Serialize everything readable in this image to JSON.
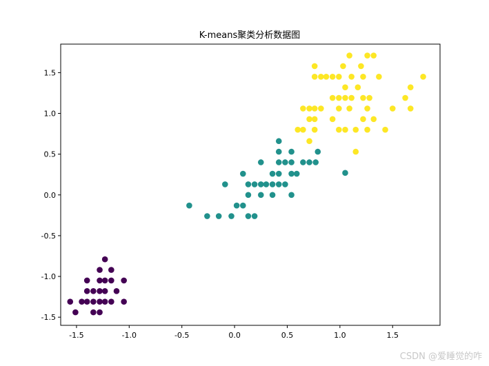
{
  "chart_data": {
    "type": "scatter",
    "title": "K-means聚类分析数据图",
    "xlabel": "",
    "ylabel": "",
    "xlim": [
      -1.65,
      1.95
    ],
    "ylim": [
      -1.6,
      1.85
    ],
    "x_ticks": [
      -1.5,
      -1.0,
      -0.5,
      0.0,
      0.5,
      1.0,
      1.5
    ],
    "y_ticks": [
      -1.5,
      -1.0,
      -0.5,
      0.0,
      0.5,
      1.0,
      1.5
    ],
    "x_tick_labels": [
      "-1.5",
      "-1.0",
      "-0.5",
      "0.0",
      "0.5",
      "1.0",
      "1.5"
    ],
    "y_tick_labels": [
      "-1.5",
      "-1.0",
      "-0.5",
      "0.0",
      "0.5",
      "1.0",
      "1.5"
    ],
    "grid": false,
    "series": [
      {
        "color": "#440154",
        "points": [
          [
            -1.23,
            -0.79
          ],
          [
            -1.28,
            -0.92
          ],
          [
            -1.17,
            -0.92
          ],
          [
            -1.4,
            -1.05
          ],
          [
            -1.28,
            -1.05
          ],
          [
            -1.23,
            -1.05
          ],
          [
            -1.17,
            -1.05
          ],
          [
            -1.05,
            -1.05
          ],
          [
            -1.4,
            -1.18
          ],
          [
            -1.34,
            -1.18
          ],
          [
            -1.28,
            -1.18
          ],
          [
            -1.23,
            -1.18
          ],
          [
            -1.12,
            -1.18
          ],
          [
            -1.4,
            -1.31
          ],
          [
            -1.34,
            -1.31
          ],
          [
            -1.28,
            -1.31
          ],
          [
            -1.23,
            -1.31
          ],
          [
            -1.17,
            -1.31
          ],
          [
            -1.56,
            -1.31
          ],
          [
            -1.45,
            -1.31
          ],
          [
            -1.05,
            -1.31
          ],
          [
            -1.51,
            -1.44
          ],
          [
            -1.34,
            -1.44
          ],
          [
            -1.28,
            -1.44
          ]
        ]
      },
      {
        "color": "#21918c",
        "points": [
          [
            0.42,
            0.66
          ],
          [
            0.42,
            0.53
          ],
          [
            0.54,
            0.53
          ],
          [
            0.79,
            0.53
          ],
          [
            0.25,
            0.4
          ],
          [
            0.42,
            0.4
          ],
          [
            0.48,
            0.4
          ],
          [
            0.54,
            0.4
          ],
          [
            0.65,
            0.4
          ],
          [
            0.71,
            0.4
          ],
          [
            0.77,
            0.4
          ],
          [
            0.08,
            0.26
          ],
          [
            0.36,
            0.26
          ],
          [
            0.42,
            0.26
          ],
          [
            0.54,
            0.26
          ],
          [
            0.59,
            0.26
          ],
          [
            1.05,
            0.27
          ],
          [
            -0.09,
            0.13
          ],
          [
            0.13,
            0.13
          ],
          [
            0.19,
            0.13
          ],
          [
            0.25,
            0.13
          ],
          [
            0.3,
            0.13
          ],
          [
            0.36,
            0.13
          ],
          [
            0.42,
            0.13
          ],
          [
            0.48,
            0.13
          ],
          [
            0.13,
            0.0
          ],
          [
            0.25,
            0.0
          ],
          [
            0.36,
            0.0
          ],
          [
            0.54,
            0.0
          ],
          [
            0.02,
            -0.13
          ],
          [
            0.08,
            -0.13
          ],
          [
            -0.43,
            -0.13
          ],
          [
            -0.26,
            -0.26
          ],
          [
            -0.15,
            -0.26
          ],
          [
            -0.03,
            -0.26
          ],
          [
            0.13,
            -0.26
          ],
          [
            0.19,
            -0.26
          ]
        ]
      },
      {
        "color": "#fde725",
        "points": [
          [
            1.09,
            1.71
          ],
          [
            1.26,
            1.71
          ],
          [
            1.32,
            1.71
          ],
          [
            0.76,
            1.58
          ],
          [
            1.03,
            1.58
          ],
          [
            1.2,
            1.58
          ],
          [
            0.76,
            1.45
          ],
          [
            0.82,
            1.45
          ],
          [
            0.87,
            1.45
          ],
          [
            0.93,
            1.45
          ],
          [
            0.99,
            1.45
          ],
          [
            1.11,
            1.45
          ],
          [
            1.22,
            1.45
          ],
          [
            1.37,
            1.45
          ],
          [
            1.79,
            1.45
          ],
          [
            1.05,
            1.32
          ],
          [
            1.17,
            1.32
          ],
          [
            1.67,
            1.32
          ],
          [
            0.93,
            1.19
          ],
          [
            0.99,
            1.19
          ],
          [
            1.05,
            1.19
          ],
          [
            1.11,
            1.19
          ],
          [
            1.22,
            1.19
          ],
          [
            1.28,
            1.19
          ],
          [
            1.62,
            1.19
          ],
          [
            0.65,
            1.06
          ],
          [
            0.71,
            1.06
          ],
          [
            0.76,
            1.06
          ],
          [
            0.82,
            1.06
          ],
          [
            0.99,
            1.06
          ],
          [
            1.09,
            1.06
          ],
          [
            1.26,
            1.06
          ],
          [
            1.5,
            1.06
          ],
          [
            1.67,
            1.06
          ],
          [
            0.71,
            0.93
          ],
          [
            0.76,
            0.93
          ],
          [
            0.93,
            0.93
          ],
          [
            1.22,
            0.93
          ],
          [
            1.32,
            0.93
          ],
          [
            0.6,
            0.8
          ],
          [
            0.65,
            0.8
          ],
          [
            0.76,
            0.8
          ],
          [
            0.99,
            0.8
          ],
          [
            1.05,
            0.8
          ],
          [
            1.15,
            0.8
          ],
          [
            1.26,
            0.8
          ],
          [
            1.43,
            0.8
          ],
          [
            0.71,
            0.66
          ],
          [
            1.15,
            0.53
          ]
        ]
      }
    ]
  },
  "watermark": "CSDN @爱睡觉的咋"
}
